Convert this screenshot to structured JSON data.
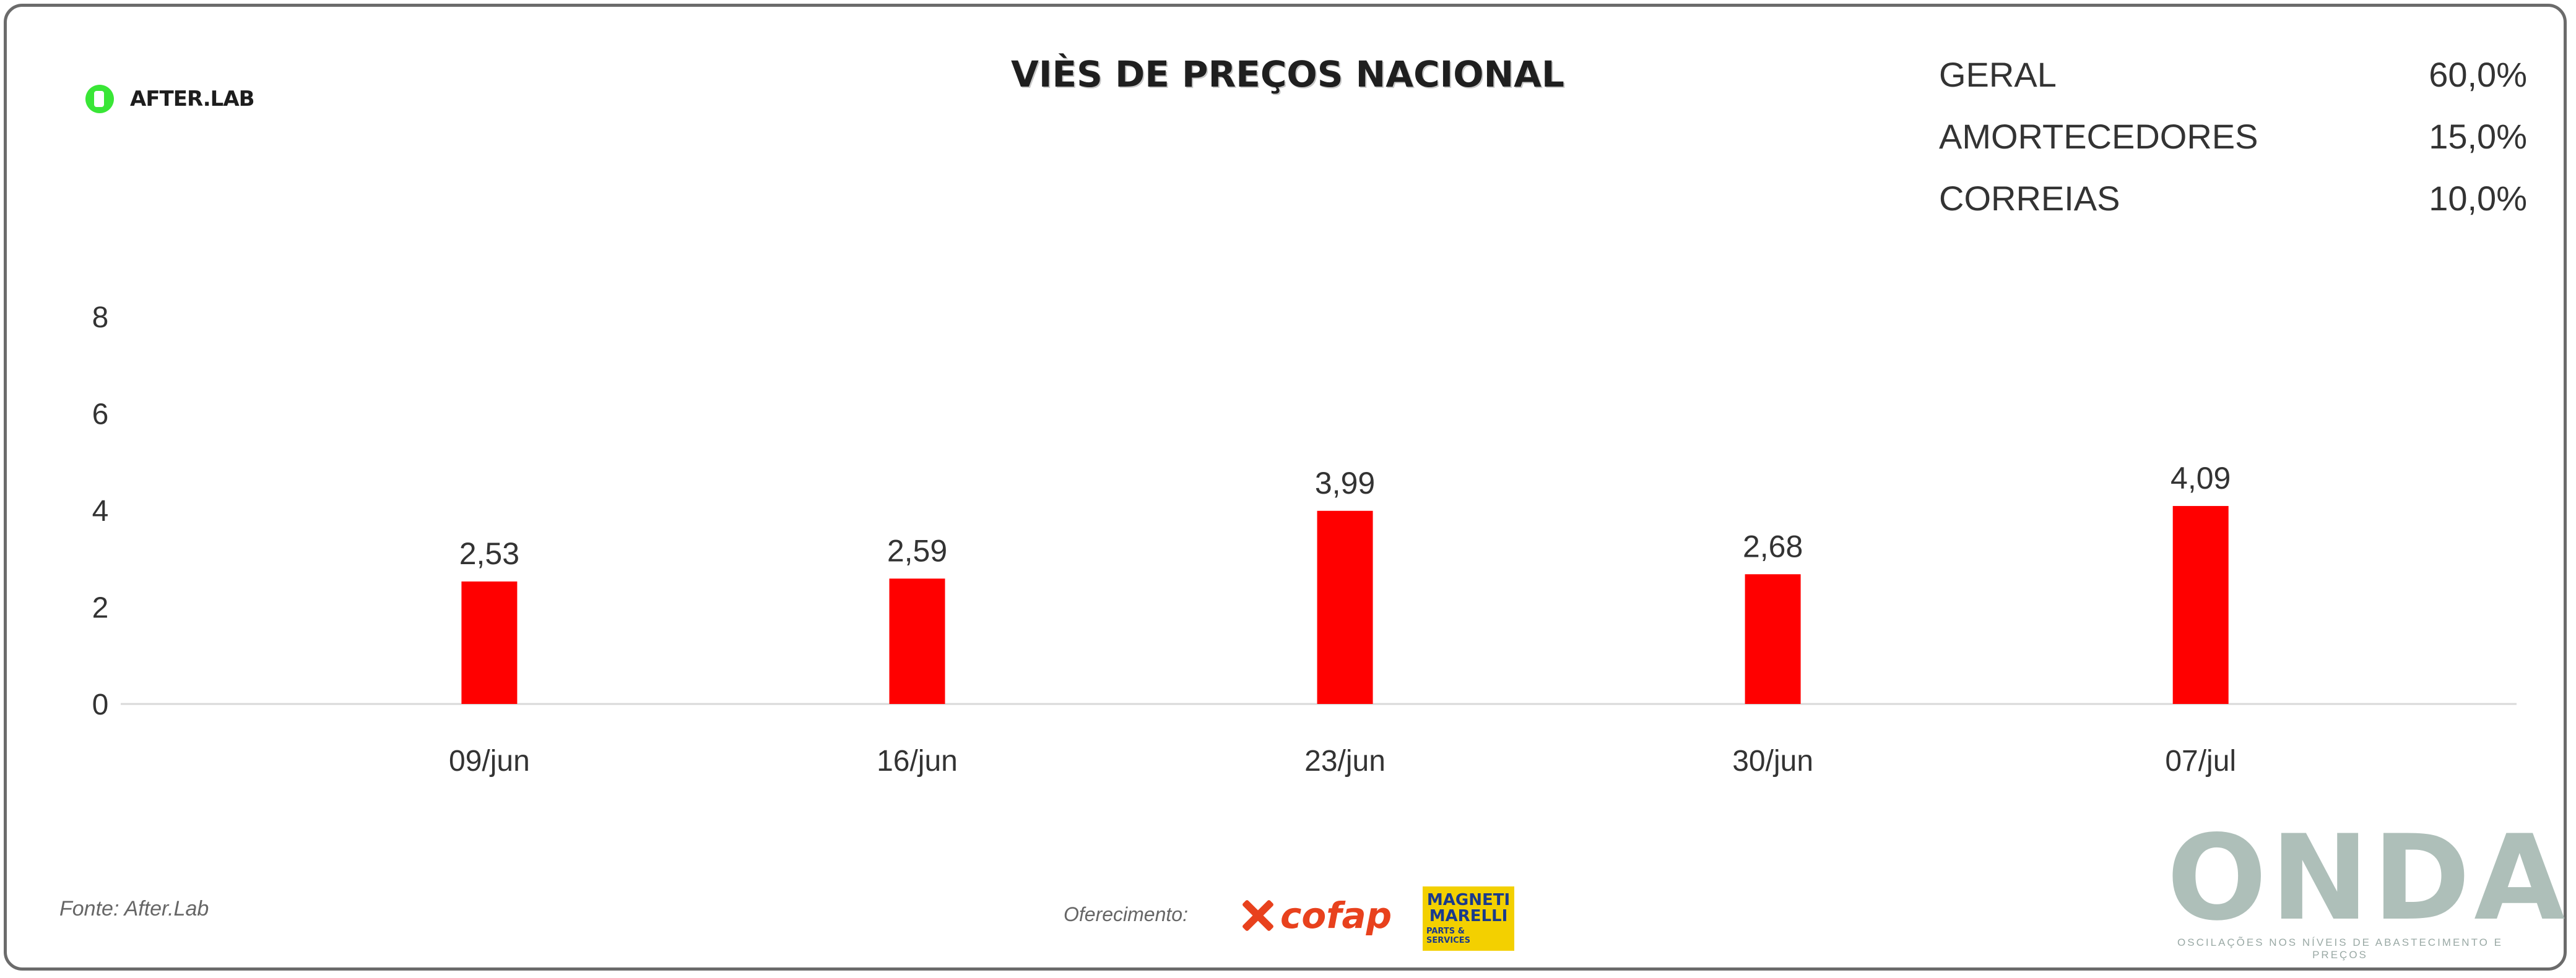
{
  "brand": {
    "logo_text": "AFTER.LAB"
  },
  "chart_data": {
    "type": "bar",
    "title": "VIÈS DE PREÇOS NACIONAL",
    "categories": [
      "09/jun",
      "16/jun",
      "23/jun",
      "30/jun",
      "07/jul"
    ],
    "series": [
      {
        "values": [
          2.53,
          2.59,
          3.99,
          2.68,
          4.09
        ],
        "color": "#ff0000"
      }
    ],
    "data_labels": [
      "2,53",
      "2,59",
      "3,99",
      "2,68",
      "4,09"
    ],
    "y_ticks": [
      0,
      2,
      4,
      6,
      8
    ],
    "y_tick_labels": [
      "0",
      "2",
      "4",
      "6",
      "8"
    ],
    "ylim": [
      0,
      8
    ],
    "xlabel": "",
    "ylabel": "",
    "grid": false,
    "legend": "none"
  },
  "stats": [
    {
      "label": "GERAL",
      "value": "60,0%"
    },
    {
      "label": "AMORTECEDORES",
      "value": "15,0%"
    },
    {
      "label": "CORREIAS",
      "value": "10,0%"
    }
  ],
  "footer": {
    "source": "Fonte: After.Lab",
    "sponsor_label": "Oferecimento:",
    "sponsor_1": "cofap",
    "sponsor_2_name": "MAGNETI\nMARELLI",
    "sponsor_2_sub": "PARTS & SERVICES",
    "onda_word": "ONDA",
    "onda_tagline": "OSCILAÇÕES NOS NÍVEIS DE ABASTECIMENTO E PREÇOS"
  },
  "colors": {
    "bar": "#ff0000",
    "onda": "#aebfb9",
    "frame": "#6b6b6b"
  }
}
